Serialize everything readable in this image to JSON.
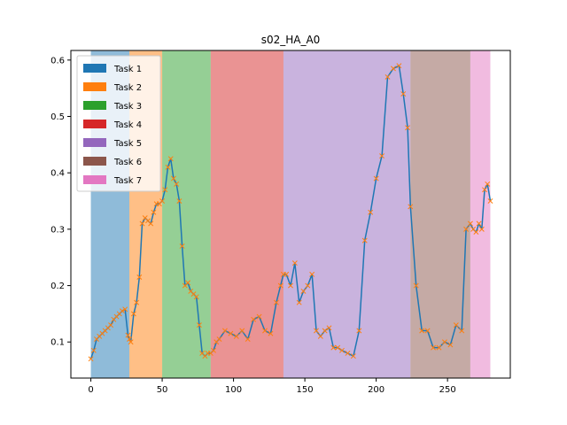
{
  "chart_data": {
    "type": "line",
    "title": "s02_HA_A0",
    "xlabel": "",
    "ylabel": "",
    "xlim": [
      -14,
      294
    ],
    "ylim": [
      0.036,
      0.617
    ],
    "xticks": [
      0,
      50,
      100,
      150,
      200,
      250
    ],
    "yticks": [
      0.1,
      0.2,
      0.3,
      0.4,
      0.5,
      0.6
    ],
    "xtick_labels": [
      "0",
      "50",
      "100",
      "150",
      "200",
      "250"
    ],
    "ytick_labels": [
      "0.1",
      "0.2",
      "0.3",
      "0.4",
      "0.5",
      "0.6"
    ],
    "grid": false,
    "legend_position": "upper-left",
    "line_color": "#1f77b4",
    "marker_color": "#ff7f0e",
    "tasks": [
      {
        "name": "Task 1",
        "start": 0,
        "end": 27,
        "color": "#1f77b4"
      },
      {
        "name": "Task 2",
        "start": 27,
        "end": 50,
        "color": "#ff7f0e"
      },
      {
        "name": "Task 3",
        "start": 50,
        "end": 84,
        "color": "#2ca02c"
      },
      {
        "name": "Task 4",
        "start": 84,
        "end": 135,
        "color": "#d62728"
      },
      {
        "name": "Task 5",
        "start": 135,
        "end": 224,
        "color": "#9467bd"
      },
      {
        "name": "Task 6",
        "start": 224,
        "end": 266,
        "color": "#8c564b"
      },
      {
        "name": "Task 7",
        "start": 266,
        "end": 280,
        "color": "#e377c2"
      }
    ],
    "series": [
      {
        "x": [
          0,
          2,
          4,
          6,
          8,
          10,
          12,
          14,
          16,
          18,
          20,
          22,
          24,
          26,
          27,
          28,
          30,
          32,
          34,
          36,
          38,
          40,
          42,
          44,
          46,
          48,
          50,
          52,
          54,
          56,
          58,
          60,
          62,
          64,
          66,
          68,
          70,
          72,
          74,
          76,
          78,
          80,
          82,
          84,
          86,
          88,
          90,
          94,
          98,
          102,
          106,
          110,
          114,
          118,
          122,
          126,
          130,
          133,
          135,
          137,
          140,
          143,
          146,
          149,
          152,
          155,
          158,
          161,
          164,
          167,
          170,
          173,
          176,
          180,
          184,
          188,
          192,
          196,
          200,
          204,
          208,
          212,
          216,
          219,
          222,
          224,
          228,
          232,
          236,
          240,
          244,
          248,
          252,
          256,
          260,
          263,
          266,
          268,
          270,
          272,
          274,
          276,
          278,
          280
        ],
        "y": [
          0.07,
          0.085,
          0.105,
          0.11,
          0.115,
          0.12,
          0.125,
          0.13,
          0.14,
          0.145,
          0.15,
          0.155,
          0.158,
          0.112,
          0.105,
          0.1,
          0.15,
          0.17,
          0.215,
          0.31,
          0.32,
          0.315,
          0.31,
          0.33,
          0.345,
          0.345,
          0.35,
          0.37,
          0.41,
          0.425,
          0.39,
          0.38,
          0.35,
          0.27,
          0.2,
          0.205,
          0.19,
          0.185,
          0.18,
          0.13,
          0.08,
          0.075,
          0.08,
          0.08,
          0.085,
          0.1,
          0.105,
          0.12,
          0.115,
          0.11,
          0.12,
          0.105,
          0.14,
          0.145,
          0.12,
          0.115,
          0.17,
          0.2,
          0.22,
          0.22,
          0.2,
          0.24,
          0.17,
          0.19,
          0.2,
          0.22,
          0.12,
          0.11,
          0.12,
          0.125,
          0.09,
          0.09,
          0.085,
          0.08,
          0.075,
          0.12,
          0.28,
          0.33,
          0.39,
          0.43,
          0.57,
          0.585,
          0.59,
          0.54,
          0.48,
          0.34,
          0.2,
          0.12,
          0.12,
          0.09,
          0.09,
          0.1,
          0.095,
          0.13,
          0.12,
          0.3,
          0.31,
          0.3,
          0.295,
          0.31,
          0.3,
          0.37,
          0.38,
          0.35
        ]
      }
    ]
  }
}
